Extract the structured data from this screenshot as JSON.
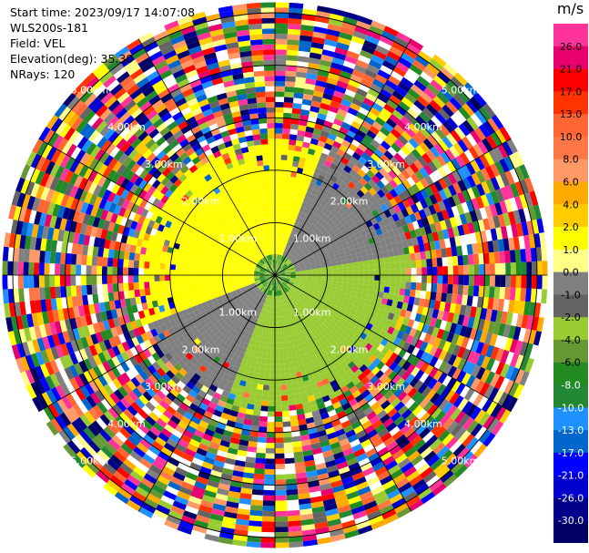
{
  "header": {
    "start_time": "Start time: 2023/09/17 14:07:08",
    "instrument": "WLS200s-181",
    "field": "Field: VEL",
    "elevation": "Elevation(deg): 35.30",
    "nrays": "NRays: 120"
  },
  "colorbar": {
    "unit": "m/s",
    "ticks": [
      "26.0",
      "21.0",
      "17.0",
      "13.0",
      "10.0",
      "8.0",
      "6.0",
      "4.0",
      "2.0",
      "1.0",
      "0.0",
      "-1.0",
      "-2.0",
      "-4.0",
      "-6.0",
      "-8.0",
      "-10.0",
      "-13.0",
      "-17.0",
      "-21.0",
      "-26.0",
      "-30.0"
    ],
    "colors": [
      "#ff3399",
      "#e8006e",
      "#ff0000",
      "#ff3300",
      "#ff6633",
      "#ff7744",
      "#ff9966",
      "#ffaa00",
      "#ffcc00",
      "#ffff00",
      "#ffff88",
      "#808080",
      "#646464",
      "#99cc33",
      "#669933",
      "#228b22",
      "#228833",
      "#1e90ff",
      "#0066cc",
      "#0000ff",
      "#0000cc",
      "#000088",
      "#000066"
    ]
  },
  "chart_data": {
    "type": "ppi",
    "field": "VEL",
    "nrays": 120,
    "range_rings_km": [
      1.0,
      2.0,
      3.0,
      4.0,
      5.0
    ],
    "ring_labels": [
      "1.00km",
      "2.00km",
      "3.00km",
      "4.00km",
      "5.00km"
    ],
    "max_range_km": 5.2,
    "radial_lines_deg": [
      0,
      30,
      60,
      90,
      120,
      150,
      180,
      210,
      240,
      270,
      300,
      330
    ],
    "color_scale_ms": [
      -30,
      26
    ],
    "pattern": {
      "inner_west_velocity_ms": 2.0,
      "inner_east_velocity_ms": -2.0,
      "ne_band_velocity_ms": 0.0,
      "sw_band_velocity_ms": 0.0,
      "coherent_range_km": 2.6,
      "outer_region": "noise"
    }
  }
}
